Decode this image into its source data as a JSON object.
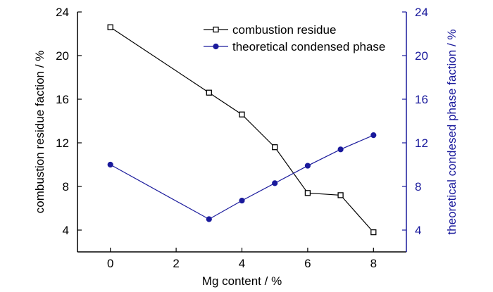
{
  "chart_data": {
    "type": "line",
    "x": [
      0,
      3,
      4,
      5,
      6,
      7,
      8
    ],
    "xlabel": "Mg content / %",
    "xlim": [
      -1,
      9
    ],
    "xticks": [
      0,
      2,
      4,
      6,
      8
    ],
    "ylabel_left": "combustion residue faction / %",
    "ylabel_right": "theoretical condesed phase faction / %",
    "ylim": [
      2,
      24
    ],
    "yticks": [
      4,
      8,
      12,
      16,
      20,
      24
    ],
    "grid": false,
    "legend_position": "top-right",
    "series": [
      {
        "name": "combustion residue",
        "axis": "left",
        "color": "#000000",
        "marker": "open-square",
        "values": [
          22.6,
          16.6,
          14.6,
          11.6,
          7.4,
          7.2,
          3.8
        ]
      },
      {
        "name": "theoretical condensed phase",
        "axis": "right",
        "color": "#1a1a9c",
        "marker": "filled-circle",
        "values": [
          10.0,
          5.0,
          6.7,
          8.3,
          9.9,
          11.4,
          12.7
        ]
      }
    ],
    "colors": {
      "left_axis": "#000000",
      "right_axis": "#1a1a9c"
    }
  }
}
